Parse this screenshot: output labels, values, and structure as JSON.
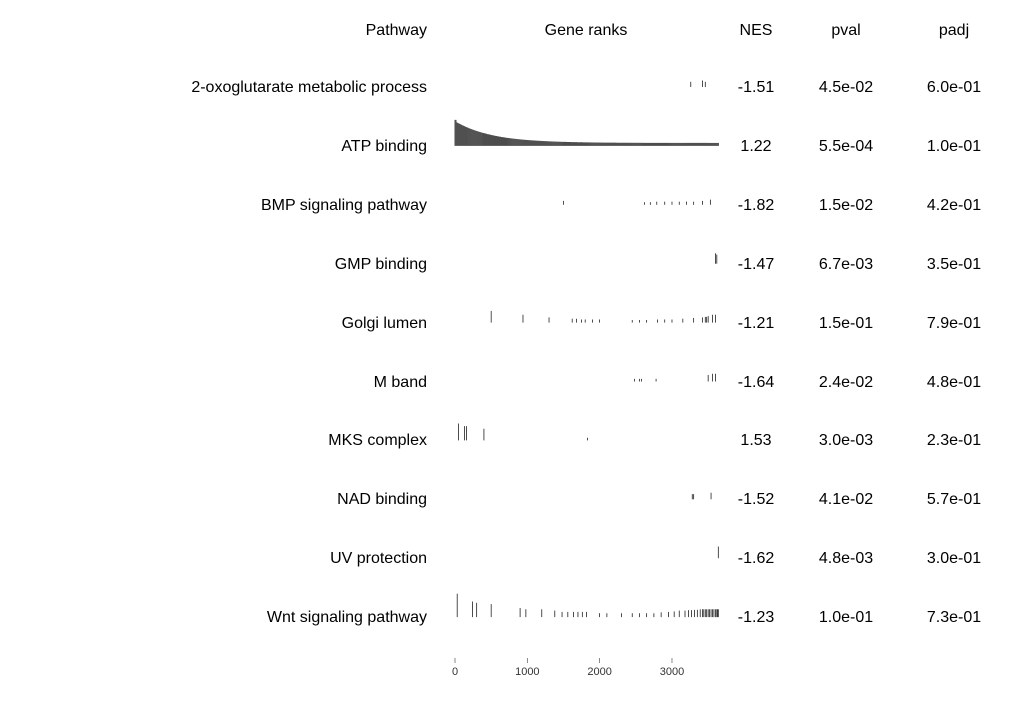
{
  "headers": {
    "pathway": "Pathway",
    "gene_ranks": "Gene ranks",
    "nes": "NES",
    "pval": "pval",
    "padj": "padj"
  },
  "chart_data": {
    "type": "table",
    "x_axis": {
      "ticks": [
        0,
        1000,
        2000,
        3000
      ],
      "range": [
        0,
        3650
      ]
    },
    "rows": [
      {
        "pathway": "2-oxoglutarate metabolic process",
        "nes": "-1.51",
        "pval": "4.5e-02",
        "padj": "6.0e-01",
        "ranks": [
          [
            3260,
            0.2
          ],
          [
            3420,
            0.25
          ],
          [
            3460,
            0.2
          ]
        ]
      },
      {
        "pathway": "ATP binding",
        "nes": "1.22",
        "pval": "5.5e-04",
        "padj": "1.0e-01",
        "ranks": "dense"
      },
      {
        "pathway": "BMP signaling pathway",
        "nes": "-1.82",
        "pval": "1.5e-02",
        "padj": "4.2e-01",
        "ranks": [
          [
            1500,
            0.15
          ],
          [
            2620,
            0.1
          ],
          [
            2700,
            0.1
          ],
          [
            2790,
            0.12
          ],
          [
            2900,
            0.12
          ],
          [
            3000,
            0.12
          ],
          [
            3100,
            0.12
          ],
          [
            3200,
            0.12
          ],
          [
            3300,
            0.12
          ],
          [
            3420,
            0.15
          ],
          [
            3530,
            0.2
          ]
        ]
      },
      {
        "pathway": "GMP binding",
        "nes": "-1.47",
        "pval": "6.7e-03",
        "padj": "3.5e-01",
        "ranks": [
          [
            3600,
            0.4
          ],
          [
            3620,
            0.35
          ]
        ]
      },
      {
        "pathway": "Golgi lumen",
        "nes": "-1.21",
        "pval": "1.5e-01",
        "padj": "7.9e-01",
        "ranks": [
          [
            500,
            0.45
          ],
          [
            940,
            0.3
          ],
          [
            1300,
            0.2
          ],
          [
            1620,
            0.15
          ],
          [
            1680,
            0.15
          ],
          [
            1750,
            0.12
          ],
          [
            1800,
            0.12
          ],
          [
            1900,
            0.12
          ],
          [
            2000,
            0.12
          ],
          [
            2450,
            0.1
          ],
          [
            2550,
            0.1
          ],
          [
            2650,
            0.1
          ],
          [
            2800,
            0.12
          ],
          [
            2900,
            0.12
          ],
          [
            3000,
            0.12
          ],
          [
            3150,
            0.15
          ],
          [
            3300,
            0.18
          ],
          [
            3420,
            0.2
          ],
          [
            3460,
            0.22
          ],
          [
            3480,
            0.22
          ],
          [
            3500,
            0.25
          ],
          [
            3560,
            0.3
          ],
          [
            3600,
            0.3
          ]
        ]
      },
      {
        "pathway": "M band",
        "nes": "-1.64",
        "pval": "2.4e-02",
        "padj": "4.8e-01",
        "ranks": [
          [
            2480,
            0.1
          ],
          [
            2550,
            0.1
          ],
          [
            2580,
            0.1
          ],
          [
            2780,
            0.1
          ],
          [
            3500,
            0.25
          ],
          [
            3560,
            0.3
          ],
          [
            3600,
            0.3
          ]
        ]
      },
      {
        "pathway": "MKS complex",
        "nes": "1.53",
        "pval": "3.0e-03",
        "padj": "2.3e-01",
        "ranks": [
          [
            50,
            0.65
          ],
          [
            130,
            0.55
          ],
          [
            160,
            0.55
          ],
          [
            400,
            0.45
          ],
          [
            1830,
            0.1
          ]
        ]
      },
      {
        "pathway": "NAD binding",
        "nes": "-1.52",
        "pval": "4.1e-02",
        "padj": "5.7e-01",
        "ranks": [
          [
            3280,
            0.2
          ],
          [
            3300,
            0.2
          ],
          [
            3540,
            0.25
          ]
        ]
      },
      {
        "pathway": "UV protection",
        "nes": "-1.62",
        "pval": "4.8e-03",
        "padj": "3.0e-01",
        "ranks": [
          [
            3640,
            0.45
          ]
        ]
      },
      {
        "pathway": "Wnt signaling pathway",
        "nes": "-1.23",
        "pval": "1.0e-01",
        "padj": "7.3e-01",
        "ranks": [
          [
            30,
            0.9
          ],
          [
            240,
            0.6
          ],
          [
            300,
            0.55
          ],
          [
            500,
            0.5
          ],
          [
            900,
            0.35
          ],
          [
            980,
            0.3
          ],
          [
            1200,
            0.3
          ],
          [
            1380,
            0.25
          ],
          [
            1480,
            0.2
          ],
          [
            1560,
            0.2
          ],
          [
            1640,
            0.2
          ],
          [
            1700,
            0.2
          ],
          [
            1760,
            0.2
          ],
          [
            1820,
            0.2
          ],
          [
            2000,
            0.15
          ],
          [
            2100,
            0.15
          ],
          [
            2300,
            0.15
          ],
          [
            2450,
            0.15
          ],
          [
            2550,
            0.15
          ],
          [
            2650,
            0.15
          ],
          [
            2750,
            0.15
          ],
          [
            2850,
            0.18
          ],
          [
            2950,
            0.2
          ],
          [
            3030,
            0.22
          ],
          [
            3100,
            0.25
          ],
          [
            3180,
            0.25
          ],
          [
            3230,
            0.27
          ],
          [
            3270,
            0.27
          ],
          [
            3310,
            0.28
          ],
          [
            3350,
            0.28
          ],
          [
            3390,
            0.3
          ],
          [
            3420,
            0.3
          ],
          [
            3440,
            0.3
          ],
          [
            3460,
            0.3
          ],
          [
            3480,
            0.3
          ],
          [
            3500,
            0.3
          ],
          [
            3520,
            0.3
          ],
          [
            3540,
            0.3
          ],
          [
            3560,
            0.3
          ],
          [
            3580,
            0.3
          ],
          [
            3600,
            0.3
          ],
          [
            3620,
            0.3
          ],
          [
            3630,
            0.3
          ],
          [
            3640,
            0.3
          ]
        ]
      }
    ]
  }
}
